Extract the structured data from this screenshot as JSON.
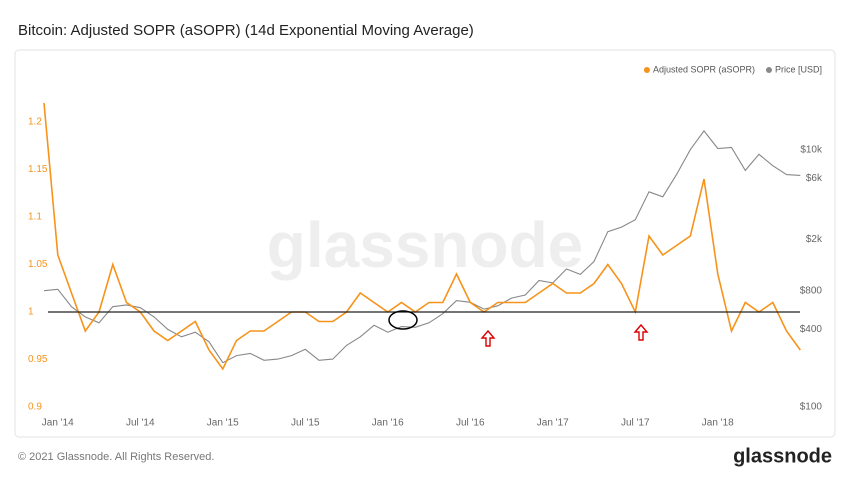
{
  "chart_data": {
    "type": "line",
    "title": "Bitcoin: Adjusted SOPR (aSOPR) (14d Exponential Moving Average)",
    "watermark": "glassnode",
    "footer": "© 2021 Glassnode. All Rights Reserved.",
    "brand": "glassnode",
    "x": [
      "2013-12",
      "2014-01",
      "2014-02",
      "2014-03",
      "2014-04",
      "2014-05",
      "2014-06",
      "2014-07",
      "2014-08",
      "2014-09",
      "2014-10",
      "2014-11",
      "2014-12",
      "2015-01",
      "2015-02",
      "2015-03",
      "2015-04",
      "2015-05",
      "2015-06",
      "2015-07",
      "2015-08",
      "2015-09",
      "2015-10",
      "2015-11",
      "2015-12",
      "2016-01",
      "2016-02",
      "2016-03",
      "2016-04",
      "2016-05",
      "2016-06",
      "2016-07",
      "2016-08",
      "2016-09",
      "2016-10",
      "2016-11",
      "2016-12",
      "2017-01",
      "2017-02",
      "2017-03",
      "2017-04",
      "2017-05",
      "2017-06",
      "2017-07",
      "2017-08",
      "2017-09",
      "2017-10",
      "2017-11",
      "2017-12",
      "2018-01",
      "2018-02",
      "2018-03",
      "2018-04",
      "2018-05",
      "2018-06",
      "2018-07"
    ],
    "xticks": [
      {
        "value": "2014-01",
        "label": "Jan '14"
      },
      {
        "value": "2014-07",
        "label": "Jul '14"
      },
      {
        "value": "2015-01",
        "label": "Jan '15"
      },
      {
        "value": "2015-07",
        "label": "Jul '15"
      },
      {
        "value": "2016-01",
        "label": "Jan '16"
      },
      {
        "value": "2016-07",
        "label": "Jul '16"
      },
      {
        "value": "2017-01",
        "label": "Jan '17"
      },
      {
        "value": "2017-07",
        "label": "Jul '17"
      },
      {
        "value": "2018-01",
        "label": "Jan '18"
      }
    ],
    "ylim": [
      0.89,
      1.27
    ],
    "yticks": [
      0.9,
      0.95,
      1,
      1.05,
      1.1,
      1.15,
      1.2
    ],
    "y2lim": [
      84,
      54000
    ],
    "y2scale": "log",
    "y2ticks": [
      {
        "value": 100,
        "label": "$100"
      },
      {
        "value": 400,
        "label": "$400"
      },
      {
        "value": 800,
        "label": "$800"
      },
      {
        "value": 2000,
        "label": "$2k"
      },
      {
        "value": 6000,
        "label": "$6k"
      },
      {
        "value": 10000,
        "label": "$10k"
      }
    ],
    "hline": 1,
    "legend": "top-right",
    "series": [
      {
        "name": "Adjusted SOPR (aSOPR)",
        "color": "#f7931a",
        "values": [
          1.22,
          1.06,
          1.02,
          0.98,
          1.0,
          1.05,
          1.01,
          1.0,
          0.98,
          0.97,
          0.98,
          0.99,
          0.96,
          0.94,
          0.97,
          0.98,
          0.98,
          0.99,
          1.0,
          1.0,
          0.99,
          0.99,
          1.0,
          1.02,
          1.01,
          1.0,
          1.01,
          1.0,
          1.01,
          1.01,
          1.04,
          1.01,
          1.0,
          1.01,
          1.01,
          1.01,
          1.02,
          1.03,
          1.02,
          1.02,
          1.03,
          1.05,
          1.03,
          1.0,
          1.08,
          1.06,
          1.07,
          1.08,
          1.14,
          1.04,
          0.98,
          1.01,
          1.0,
          1.01,
          0.98,
          0.96
        ]
      },
      {
        "name": "Price [USD]",
        "color": "#888888",
        "axis": "y2",
        "values": [
          800,
          820,
          600,
          500,
          450,
          600,
          620,
          590,
          500,
          400,
          350,
          380,
          320,
          220,
          250,
          260,
          230,
          235,
          250,
          280,
          230,
          235,
          300,
          350,
          430,
          380,
          420,
          415,
          450,
          530,
          670,
          650,
          575,
          610,
          700,
          740,
          960,
          920,
          1180,
          1070,
          1350,
          2300,
          2500,
          2850,
          4700,
          4300,
          6400,
          10000,
          14000,
          10200,
          10400,
          6900,
          9200,
          7500,
          6400,
          6300
        ]
      }
    ]
  }
}
